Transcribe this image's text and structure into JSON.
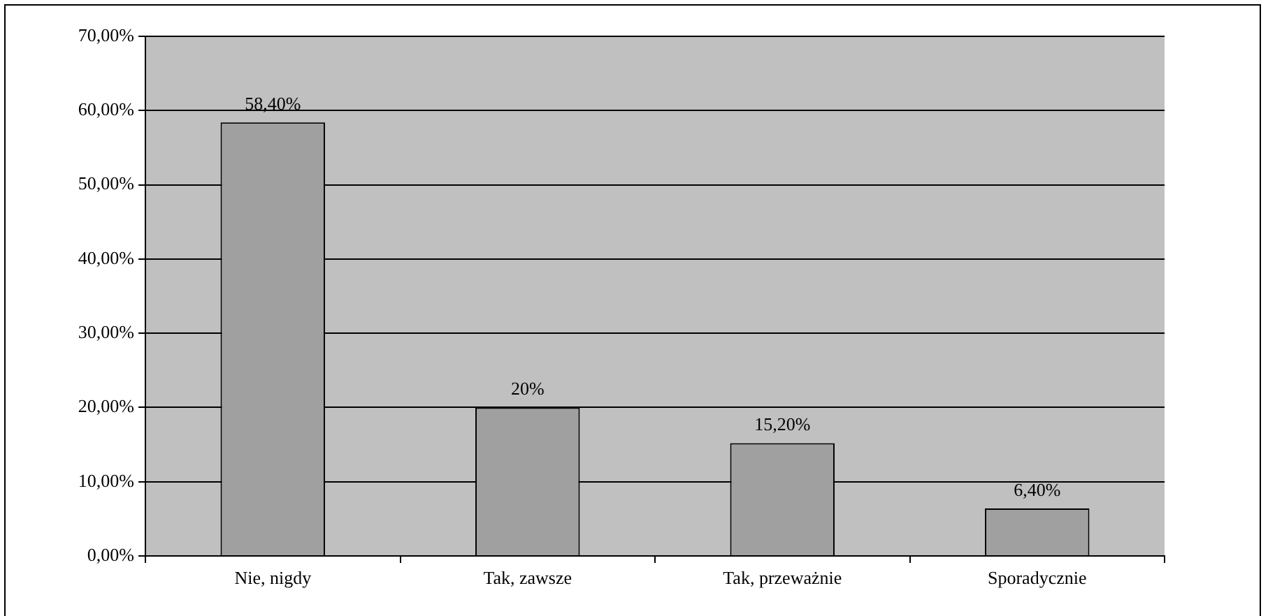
{
  "chart_data": {
    "type": "bar",
    "categories": [
      "Nie, nigdy",
      "Tak, zawsze",
      "Tak, przeważnie",
      "Sporadycznie"
    ],
    "values": [
      58.4,
      20,
      15.2,
      6.4
    ],
    "value_labels": [
      "58,40%",
      "20%",
      "15,20%",
      "6,40%"
    ],
    "color": "#a0a0a0",
    "ylim": [
      0,
      70
    ],
    "yticks": [
      {
        "value": 0,
        "label": "0,00%"
      },
      {
        "value": 10,
        "label": "10,00%"
      },
      {
        "value": 20,
        "label": "20,00%"
      },
      {
        "value": 30,
        "label": "30,00%"
      },
      {
        "value": 40,
        "label": "40,00%"
      },
      {
        "value": 50,
        "label": "50,00%"
      },
      {
        "value": 60,
        "label": "60,00%"
      },
      {
        "value": 70,
        "label": "70,00%"
      }
    ],
    "grid": "y",
    "legend": false
  }
}
